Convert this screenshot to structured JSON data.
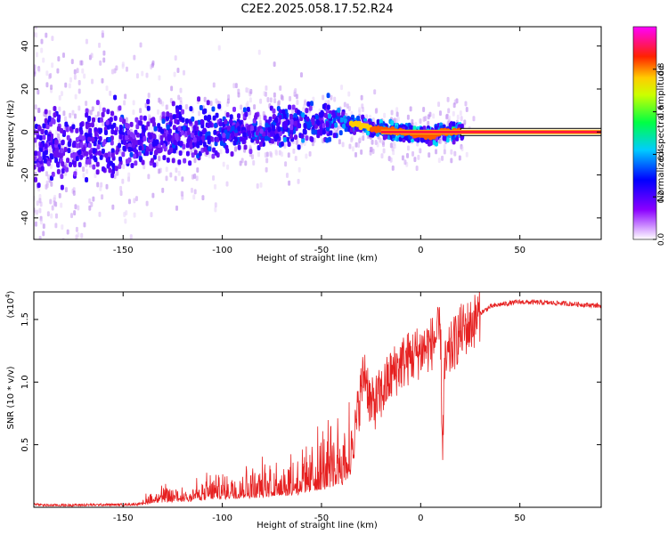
{
  "title": "C2E2.2025.058.17.52.R24",
  "colors": {
    "snr_line": "#e62020",
    "carrier_core": "#ff1a3a",
    "axis": "#000000"
  },
  "chart_data": [
    {
      "type": "heatmap",
      "title": "C2E2.2025.058.17.52.R24",
      "xlabel": "Height of straight line (km)",
      "ylabel": "Frequency (Hz)",
      "xlim": [
        -195,
        91
      ],
      "ylim": [
        -50,
        49
      ],
      "xticks": [
        -150,
        -100,
        -50,
        0,
        50
      ],
      "xtick_labels": [
        "-150",
        "-100",
        "-50",
        "0",
        "50"
      ],
      "yticks": [
        -40,
        -20,
        0,
        20,
        40
      ],
      "ytick_labels": [
        "-40",
        "-20",
        "0",
        "20",
        "40"
      ],
      "colorbar": {
        "label": "Normalized spectral amplitude",
        "range": [
          0,
          1
        ],
        "ticks": [
          0.0,
          0.2,
          0.4,
          0.6,
          0.8
        ],
        "tick_labels": [
          "0.0",
          "0.2",
          "0.4",
          "0.6",
          "0.8"
        ],
        "colormap": "rainbow (magenta-blue-cyan-green-yellow-orange-red)"
      },
      "description_points": {
        "frequency_center_hz": [
          [
            -195,
            -8
          ],
          [
            -180,
            -6
          ],
          [
            -160,
            -4
          ],
          [
            -140,
            -3
          ],
          [
            -120,
            -2
          ],
          [
            -100,
            0
          ],
          [
            -80,
            2
          ],
          [
            -60,
            4
          ],
          [
            -50,
            6
          ],
          [
            -40,
            5
          ],
          [
            -30,
            3
          ],
          [
            -20,
            1
          ],
          [
            -10,
            0
          ],
          [
            0,
            -1
          ],
          [
            5,
            -2
          ],
          [
            10,
            0
          ],
          [
            20,
            0
          ],
          [
            91,
            0
          ]
        ],
        "carrier_line_start_km": 22,
        "carrier_frequency_hz": 0
      }
    },
    {
      "type": "line",
      "title": "",
      "xlabel": "Height of straight line (km)",
      "ylabel": "SNR (10 * v/v)",
      "y_multiplier_label": "(x10",
      "y_multiplier_exp": "4",
      "xlim": [
        -195,
        91
      ],
      "ylim": [
        0,
        1.72
      ],
      "xticks": [
        -150,
        -100,
        -50,
        0,
        50
      ],
      "xtick_labels": [
        "-150",
        "-100",
        "-50",
        "0",
        "50"
      ],
      "yticks": [
        0.5,
        1.0,
        1.5
      ],
      "ytick_labels": [
        "0.5",
        "1.0",
        "1.5"
      ],
      "series": [
        {
          "name": "SNR",
          "envelope_points": [
            [
              -195,
              0.05
            ],
            [
              -190,
              0.02
            ],
            [
              -180,
              0.02
            ],
            [
              -160,
              0.03
            ],
            [
              -150,
              0.03
            ],
            [
              -140,
              0.05
            ],
            [
              -135,
              0.1
            ],
            [
              -120,
              0.12
            ],
            [
              -100,
              0.18
            ],
            [
              -80,
              0.22
            ],
            [
              -60,
              0.28
            ],
            [
              -50,
              0.38
            ],
            [
              -40,
              0.5
            ],
            [
              -33,
              0.6
            ],
            [
              -30,
              0.95
            ],
            [
              -28,
              1.1
            ],
            [
              -25,
              0.8
            ],
            [
              -20,
              0.9
            ],
            [
              -15,
              1.05
            ],
            [
              -10,
              1.15
            ],
            [
              -5,
              1.2
            ],
            [
              0,
              1.25
            ],
            [
              5,
              1.3
            ],
            [
              10,
              1.4
            ],
            [
              11,
              0.45
            ],
            [
              12,
              1.1
            ],
            [
              15,
              1.25
            ],
            [
              20,
              1.4
            ],
            [
              25,
              1.45
            ],
            [
              30,
              1.55
            ],
            [
              35,
              1.6
            ],
            [
              40,
              1.62
            ],
            [
              50,
              1.64
            ],
            [
              70,
              1.63
            ],
            [
              91,
              1.61
            ]
          ]
        }
      ]
    }
  ]
}
